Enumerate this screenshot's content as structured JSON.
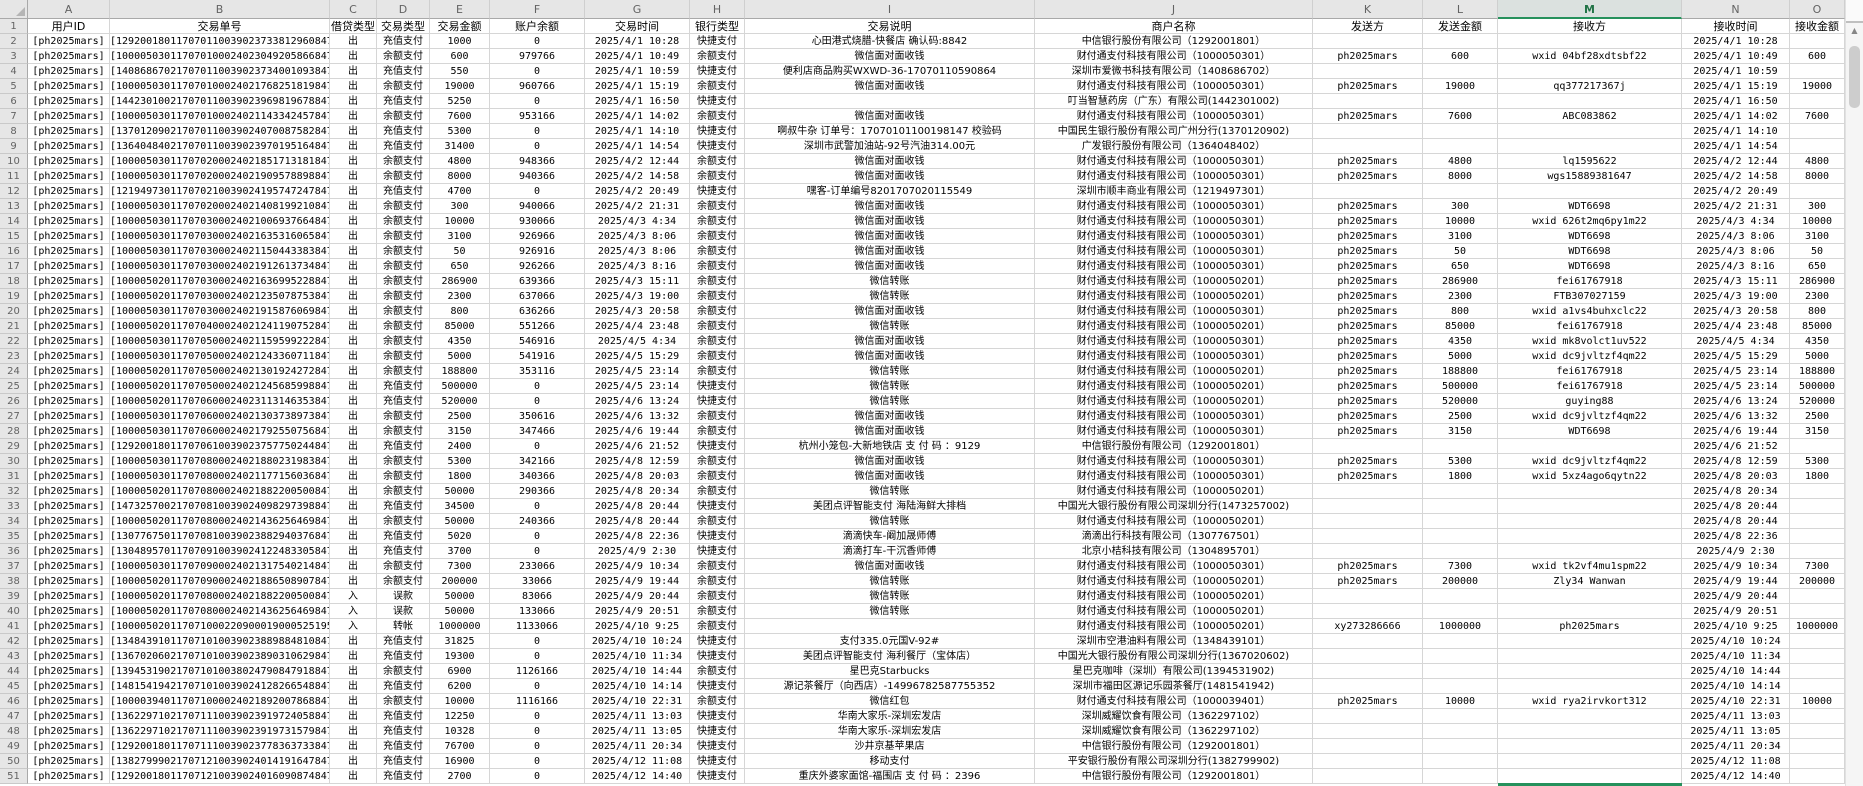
{
  "accent_color": "#217346",
  "grid": {
    "column_letters": [
      "A",
      "B",
      "C",
      "D",
      "E",
      "F",
      "G",
      "H",
      "I",
      "J",
      "K",
      "L",
      "M",
      "N",
      "O"
    ],
    "selected_column": "M",
    "first_row": 1,
    "last_row": 51,
    "header_row": [
      "用户ID",
      "交易单号",
      "借贷类型",
      "交易类型",
      "交易金额",
      "账户余额",
      "交易时间",
      "银行类型",
      "交易说明",
      "商户名称",
      "发送方",
      "发送金额",
      "接收方",
      "接收时间",
      "接收金额"
    ],
    "rows": [
      [
        "[ph2025mars]",
        "[129200180117070110039023733812960847]",
        "出",
        "充值支付",
        "1000",
        "0",
        "2025/4/1 10:28",
        "快捷支付",
        "心田港式烧腊-快餐店 确认码:8842",
        "中信银行股份有限公司（1292001801）",
        "",
        "",
        "",
        "2025/4/1 10:28",
        ""
      ],
      [
        "[ph2025mars]",
        "[100005030117070100024023049205866847]",
        "出",
        "余额支付",
        "600",
        "979766",
        "2025/4/1 10:49",
        "余额支付",
        "微信面对面收钱",
        "财付通支付科技有限公司（1000050301）",
        "ph2025mars",
        "600",
        "wxid 04bf28xdtsbf22",
        "2025/4/1 10:49",
        "600"
      ],
      [
        "[ph2025mars]",
        "[140868670217070110039023734001093847]",
        "出",
        "充值支付",
        "550",
        "0",
        "2025/4/1 10:59",
        "快捷支付",
        "便利店商品购买WXWD-36-17070110590864",
        "深圳市爱微书科技有限公司（1408686702）",
        "",
        "",
        "",
        "2025/4/1 10:59",
        ""
      ],
      [
        "[ph2025mars]",
        "[100005030117070100024021768251819847]",
        "出",
        "余额支付",
        "19000",
        "960766",
        "2025/4/1 15:19",
        "余额支付",
        "微信面对面收钱",
        "财付通支付科技有限公司（1000050301）",
        "ph2025mars",
        "19000",
        "qq377217367j",
        "2025/4/1 15:19",
        "19000"
      ],
      [
        "[ph2025mars]",
        "[144230100217070110039023969819678847]",
        "出",
        "充值支付",
        "5250",
        "0",
        "2025/4/1 16:50",
        "快捷支付",
        "",
        "叮当智慧药房（广东）有限公司(1442301002)",
        "",
        "",
        "",
        "2025/4/1 16:50",
        ""
      ],
      [
        "[ph2025mars]",
        "[100005030117070100024021143342457847]",
        "出",
        "余额支付",
        "7600",
        "953166",
        "2025/4/1 14:02",
        "余额支付",
        "微信面对面收钱",
        "财付通支付科技有限公司（1000050301）",
        "ph2025mars",
        "7600",
        "ABC083862",
        "2025/4/1 14:02",
        "7600"
      ],
      [
        "[ph2025mars]",
        "[137012090217070110039024070087582847]",
        "出",
        "充值支付",
        "5300",
        "0",
        "2025/4/1 14:10",
        "快捷支付",
        "啊叔牛杂 订单号：17070101100198147 校验码",
        "中国民生银行股份有限公司广州分行(1370120902)",
        "",
        "",
        "",
        "2025/4/1 14:10",
        ""
      ],
      [
        "[ph2025mars]",
        "[136404840217070110039023970195164847]",
        "出",
        "充值支付",
        "31400",
        "0",
        "2025/4/1 14:54",
        "快捷支付",
        "深圳市武警加油站-92号汽油314.00元",
        "广发银行股份有限公司（1364048402）",
        "",
        "",
        "",
        "2025/4/1 14:54",
        ""
      ],
      [
        "[ph2025mars]",
        "[100005030117070200024021851713181847]",
        "出",
        "余额支付",
        "4800",
        "948366",
        "2025/4/2 12:44",
        "余额支付",
        "微信面对面收钱",
        "财付通支付科技有限公司（1000050301）",
        "ph2025mars",
        "4800",
        "lq1595622",
        "2025/4/2 12:44",
        "4800"
      ],
      [
        "[ph2025mars]",
        "[100005030117070200024021909578898847]",
        "出",
        "余额支付",
        "8000",
        "940366",
        "2025/4/2 14:58",
        "余额支付",
        "微信面对面收钱",
        "财付通支付科技有限公司（1000050301）",
        "ph2025mars",
        "8000",
        "wgs15889381647",
        "2025/4/2 14:58",
        "8000"
      ],
      [
        "[ph2025mars]",
        "[121949730117070210039024195747247847]",
        "出",
        "充值支付",
        "4700",
        "0",
        "2025/4/2 20:49",
        "快捷支付",
        "嘿客-订单编号8201707020115549",
        "深圳市顺丰商业有限公司（1219497301）",
        "",
        "",
        "",
        "2025/4/2 20:49",
        ""
      ],
      [
        "[ph2025mars]",
        "[100005030117070200024021408199210847]",
        "出",
        "余额支付",
        "300",
        "940066",
        "2025/4/2 21:31",
        "余额支付",
        "微信面对面收钱",
        "财付通支付科技有限公司（1000050301）",
        "ph2025mars",
        "300",
        "WDT6698",
        "2025/4/2 21:31",
        "300"
      ],
      [
        "[ph2025mars]",
        "[100005030117070300024021006937664847]",
        "出",
        "余额支付",
        "10000",
        "930066",
        "2025/4/3 4:34",
        "余额支付",
        "微信面对面收钱",
        "财付通支付科技有限公司（1000050301）",
        "ph2025mars",
        "10000",
        "wxid 626t2mq6py1m22",
        "2025/4/3 4:34",
        "10000"
      ],
      [
        "[ph2025mars]",
        "[100005030117070300024021635316065847]",
        "出",
        "余额支付",
        "3100",
        "926966",
        "2025/4/3 8:06",
        "余额支付",
        "微信面对面收钱",
        "财付通支付科技有限公司（1000050301）",
        "ph2025mars",
        "3100",
        "WDT6698",
        "2025/4/3 8:06",
        "3100"
      ],
      [
        "[ph2025mars]",
        "[100005030117070300024021150443383847]",
        "出",
        "余额支付",
        "50",
        "926916",
        "2025/4/3 8:06",
        "余额支付",
        "微信面对面收钱",
        "财付通支付科技有限公司（1000050301）",
        "ph2025mars",
        "50",
        "WDT6698",
        "2025/4/3 8:06",
        "50"
      ],
      [
        "[ph2025mars]",
        "[100005030117070300024021912613734847]",
        "出",
        "余额支付",
        "650",
        "926266",
        "2025/4/3 8:16",
        "余额支付",
        "微信面对面收钱",
        "财付通支付科技有限公司（1000050301）",
        "ph2025mars",
        "650",
        "WDT6698",
        "2025/4/3 8:16",
        "650"
      ],
      [
        "[ph2025mars]",
        "[100005020117070300024021636995228847]",
        "出",
        "余额支付",
        "286900",
        "639366",
        "2025/4/3 15:11",
        "余额支付",
        "微信转账",
        "财付通支付科技有限公司（1000050201）",
        "ph2025mars",
        "286900",
        "fei61767918",
        "2025/4/3 15:11",
        "286900"
      ],
      [
        "[ph2025mars]",
        "[100005020117070300024021235078753847]",
        "出",
        "余额支付",
        "2300",
        "637066",
        "2025/4/3 19:00",
        "余额支付",
        "微信转账",
        "财付通支付科技有限公司（1000050201）",
        "ph2025mars",
        "2300",
        "FTB307027159",
        "2025/4/3 19:00",
        "2300"
      ],
      [
        "[ph2025mars]",
        "[100005030117070300024021915876069847]",
        "出",
        "余额支付",
        "800",
        "636266",
        "2025/4/3 20:58",
        "余额支付",
        "微信面对面收钱",
        "财付通支付科技有限公司（1000050301）",
        "ph2025mars",
        "800",
        "wxid a1vs4buhxclc22",
        "2025/4/3 20:58",
        "800"
      ],
      [
        "[ph2025mars]",
        "[100005020117070400024021241190752847]",
        "出",
        "余额支付",
        "85000",
        "551266",
        "2025/4/4 23:48",
        "余额支付",
        "微信转账",
        "财付通支付科技有限公司（1000050201）",
        "ph2025mars",
        "85000",
        "fei61767918",
        "2025/4/4 23:48",
        "85000"
      ],
      [
        "[ph2025mars]",
        "[100005030117070500024021159599222847]",
        "出",
        "余额支付",
        "4350",
        "546916",
        "2025/4/5 4:34",
        "余额支付",
        "微信面对面收钱",
        "财付通支付科技有限公司（1000050301）",
        "ph2025mars",
        "4350",
        "wxid mk8volct1uv522",
        "2025/4/5 4:34",
        "4350"
      ],
      [
        "[ph2025mars]",
        "[100005030117070500024021243360711847]",
        "出",
        "余额支付",
        "5000",
        "541916",
        "2025/4/5 15:29",
        "余额支付",
        "微信面对面收钱",
        "财付通支付科技有限公司（1000050301）",
        "ph2025mars",
        "5000",
        "wxid dc9jvltzf4qm22",
        "2025/4/5 15:29",
        "5000"
      ],
      [
        "[ph2025mars]",
        "[100005020117070500024021301924272847]",
        "出",
        "余额支付",
        "188800",
        "353116",
        "2025/4/5 23:14",
        "余额支付",
        "微信转账",
        "财付通支付科技有限公司（1000050201）",
        "ph2025mars",
        "188800",
        "fei61767918",
        "2025/4/5 23:14",
        "188800"
      ],
      [
        "[ph2025mars]",
        "[100005020117070500024021245685998847]",
        "出",
        "充值支付",
        "500000",
        "0",
        "2025/4/5 23:14",
        "快捷支付",
        "微信转账",
        "财付通支付科技有限公司（1000050201）",
        "ph2025mars",
        "500000",
        "fei61767918",
        "2025/4/5 23:14",
        "500000"
      ],
      [
        "[ph2025mars]",
        "[100005020117070600024023113146353847]",
        "出",
        "充值支付",
        "520000",
        "0",
        "2025/4/6 13:24",
        "快捷支付",
        "微信转账",
        "财付通支付科技有限公司（1000050201）",
        "ph2025mars",
        "520000",
        "guying88",
        "2025/4/6 13:24",
        "520000"
      ],
      [
        "[ph2025mars]",
        "[100005030117070600024021303738973847]",
        "出",
        "余额支付",
        "2500",
        "350616",
        "2025/4/6 13:32",
        "余额支付",
        "微信面对面收钱",
        "财付通支付科技有限公司（1000050301）",
        "ph2025mars",
        "2500",
        "wxid dc9jvltzf4qm22",
        "2025/4/6 13:32",
        "2500"
      ],
      [
        "[ph2025mars]",
        "[100005030117070600024021792550756847]",
        "出",
        "余额支付",
        "3150",
        "347466",
        "2025/4/6 19:44",
        "余额支付",
        "微信面对面收钱",
        "财付通支付科技有限公司（1000050301）",
        "ph2025mars",
        "3150",
        "WDT6698",
        "2025/4/6 19:44",
        "3150"
      ],
      [
        "[ph2025mars]",
        "[129200180117070610039023757750244847]",
        "出",
        "充值支付",
        "2400",
        "0",
        "2025/4/6 21:52",
        "快捷支付",
        "杭州小笼包-大新地铁店 支 付 码 ：9129",
        "中信银行股份有限公司（1292001801）",
        "",
        "",
        "",
        "2025/4/6 21:52",
        ""
      ],
      [
        "[ph2025mars]",
        "[100005030117070800024021880231983847]",
        "出",
        "余额支付",
        "5300",
        "342166",
        "2025/4/8 12:59",
        "余额支付",
        "微信面对面收钱",
        "财付通支付科技有限公司（1000050301）",
        "ph2025mars",
        "5300",
        "wxid dc9jvltzf4qm22",
        "2025/4/8 12:59",
        "5300"
      ],
      [
        "[ph2025mars]",
        "[100005030117070800024021177156036847]",
        "出",
        "余额支付",
        "1800",
        "340366",
        "2025/4/8 20:03",
        "余额支付",
        "微信面对面收钱",
        "财付通支付科技有限公司（1000050301）",
        "ph2025mars",
        "1800",
        "wxid 5xz4ago6qytn22",
        "2025/4/8 20:03",
        "1800"
      ],
      [
        "[ph2025mars]",
        "[100005020117070800024021882200500847]",
        "出",
        "余额支付",
        "50000",
        "290366",
        "2025/4/8 20:34",
        "余额支付",
        "微信转账",
        "财付通支付科技有限公司（1000050201）",
        "",
        "",
        "",
        "2025/4/8 20:34",
        ""
      ],
      [
        "[ph2025mars]",
        "[147325700217070810039024098297398847]",
        "出",
        "充值支付",
        "34500",
        "0",
        "2025/4/8 20:44",
        "快捷支付",
        "美团点评智能支付 海陆海鲜大排档",
        "中国光大银行股份有限公司深圳分行(1473257002)",
        "",
        "",
        "",
        "2025/4/8 20:44",
        ""
      ],
      [
        "[ph2025mars]",
        "[100005020117070800024021436256469847]",
        "出",
        "余额支付",
        "50000",
        "240366",
        "2025/4/8 20:44",
        "余额支付",
        "微信转账",
        "财付通支付科技有限公司（1000050201）",
        "",
        "",
        "",
        "2025/4/8 20:44",
        ""
      ],
      [
        "[ph2025mars]",
        "[130776750117070810039023882940376847]",
        "出",
        "充值支付",
        "5020",
        "0",
        "2025/4/8 22:36",
        "快捷支付",
        "滴滴快车-阚加晟师傅",
        "滴滴出行科技有限公司（1307767501）",
        "",
        "",
        "",
        "2025/4/8 22:36",
        ""
      ],
      [
        "[ph2025mars]",
        "[130489570117070910039024122483305847]",
        "出",
        "充值支付",
        "3700",
        "0",
        "2025/4/9 2:30",
        "快捷支付",
        "滴滴打车-干沉香师傅",
        "北京小桔科技有限公司（1304895701）",
        "",
        "",
        "",
        "2025/4/9 2:30",
        ""
      ],
      [
        "[ph2025mars]",
        "[100005030117070900024021317540214847]",
        "出",
        "余额支付",
        "7300",
        "233066",
        "2025/4/9 10:34",
        "余额支付",
        "微信面对面收钱",
        "财付通支付科技有限公司（1000050301）",
        "ph2025mars",
        "7300",
        "wxid tk2vf4mu1spm22",
        "2025/4/9 10:34",
        "7300"
      ],
      [
        "[ph2025mars]",
        "[100005020117070900024021886508907847]",
        "出",
        "余额支付",
        "200000",
        "33066",
        "2025/4/9 19:44",
        "余额支付",
        "微信转账",
        "财付通支付科技有限公司（1000050201）",
        "ph2025mars",
        "200000",
        "Zly34 Wanwan",
        "2025/4/9 19:44",
        "200000"
      ],
      [
        "[ph2025mars]",
        "[100005020117070800024021882200500847]",
        "入",
        "误款",
        "50000",
        "83066",
        "2025/4/9 20:44",
        "余额支付",
        "微信转账",
        "财付通支付科技有限公司（1000050201）",
        "",
        "",
        "",
        "2025/4/9 20:44",
        ""
      ],
      [
        "[ph2025mars]",
        "[100005020117070800024021436256469847]",
        "入",
        "误款",
        "50000",
        "133066",
        "2025/4/9 20:51",
        "余额支付",
        "微信转账",
        "财付通支付科技有限公司（1000050201）",
        "",
        "",
        "",
        "2025/4/9 20:51",
        ""
      ],
      [
        "[ph2025mars]",
        "[1000050201170710002209000190005251956847]",
        "入",
        "转帐",
        "1000000",
        "1133066",
        "2025/4/10 9:25",
        "余额支付",
        "",
        "财付通支付科技有限公司（1000050201）",
        "xy273286666",
        "1000000",
        "ph2025mars",
        "2025/4/10 9:25",
        "1000000"
      ],
      [
        "[ph2025mars]",
        "[134843910117071010039023889884810847]",
        "出",
        "充值支付",
        "31825",
        "0",
        "2025/4/10 10:24",
        "快捷支付",
        "支付335.0元国V-92#",
        "深圳市空港油料有限公司（1348439101）",
        "",
        "",
        "",
        "2025/4/10 10:24",
        ""
      ],
      [
        "[ph2025mars]",
        "[136702060217071010039023890310629847]",
        "出",
        "充值支付",
        "19300",
        "0",
        "2025/4/10 11:34",
        "快捷支付",
        "美团点评智能支付 海利餐厅（宝体店）",
        "中国光大银行股份有限公司深圳分行(1367020602)",
        "",
        "",
        "",
        "2025/4/10 11:34",
        ""
      ],
      [
        "[ph2025mars]",
        "[139453190217071010038024790847918847]",
        "出",
        "余额支付",
        "6900",
        "1126166",
        "2025/4/10 14:44",
        "余额支付",
        "星巴克Starbucks",
        "星巴克咖啡（深圳）有限公司(1394531902)",
        "",
        "",
        "",
        "2025/4/10 14:44",
        ""
      ],
      [
        "[ph2025mars]",
        "[148154194217071010039024128266548847]",
        "出",
        "充值支付",
        "6200",
        "0",
        "2025/4/10 14:14",
        "快捷支付",
        "源记茶餐厅（向西店）-14996782587755352",
        "深圳市福田区源记乐园茶餐厅(1481541942)",
        "",
        "",
        "",
        "2025/4/10 14:14",
        ""
      ],
      [
        "[ph2025mars]",
        "[100003940117071000024021892007868847]",
        "出",
        "余额支付",
        "10000",
        "1116166",
        "2025/4/10 22:31",
        "余额支付",
        "微信红包",
        "财付通支付科技有限公司（1000039401）",
        "ph2025mars",
        "10000",
        "wxid rya2irvkort312",
        "2025/4/10 22:31",
        "10000"
      ],
      [
        "[ph2025mars]",
        "[136229710217071110039023919724058847]",
        "出",
        "充值支付",
        "12250",
        "0",
        "2025/4/11 13:03",
        "快捷支付",
        "华南大家乐-深圳宏发店",
        "深圳威耀饮食有限公司（1362297102）",
        "",
        "",
        "",
        "2025/4/11 13:03",
        ""
      ],
      [
        "[ph2025mars]",
        "[136229710217071110039023919731579847]",
        "出",
        "充值支付",
        "10328",
        "0",
        "2025/4/11 13:05",
        "快捷支付",
        "华南大家乐-深圳宏发店",
        "深圳威耀饮食有限公司（1362297102）",
        "",
        "",
        "",
        "2025/4/11 13:05",
        ""
      ],
      [
        "[ph2025mars]",
        "[129200180117071110039023778363733847]",
        "出",
        "充值支付",
        "76700",
        "0",
        "2025/4/11 20:34",
        "快捷支付",
        "沙井京基苹果店",
        "中信银行股份有限公司（1292001801）",
        "",
        "",
        "",
        "2025/4/11 20:34",
        ""
      ],
      [
        "[ph2025mars]",
        "[138279990217071210039024014191647847]",
        "出",
        "充值支付",
        "16900",
        "0",
        "2025/4/12 11:08",
        "快捷支付",
        "移动支付",
        "平安银行股份有限公司深圳分行(1382799902)",
        "",
        "",
        "",
        "2025/4/12 11:08",
        ""
      ],
      [
        "[ph2025mars]",
        "[129200180117071210039024016090874847]",
        "出",
        "充值支付",
        "2700",
        "0",
        "2025/4/12 14:40",
        "快捷支付",
        "重庆外婆家面馆-福围店 支 付 码 ：2396",
        "中信银行股份有限公司（1292001801）",
        "",
        "",
        "",
        "2025/4/12 14:40",
        ""
      ]
    ]
  },
  "scrollbar": {
    "up_arrow_icon": "▲"
  }
}
